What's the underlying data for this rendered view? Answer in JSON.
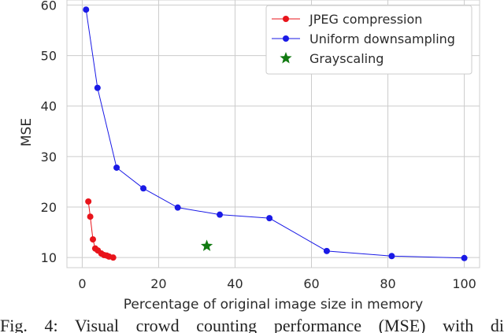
{
  "chart_data": {
    "type": "line",
    "xlabel": "Percentage of original image size in memory",
    "ylabel": "MSE",
    "xlim": [
      -4,
      104
    ],
    "ylim": [
      8,
      61
    ],
    "xticks": [
      0,
      20,
      40,
      60,
      80,
      100
    ],
    "yticks": [
      10,
      20,
      30,
      40,
      50,
      60
    ],
    "grid": true,
    "legend_position": "top-right",
    "series": [
      {
        "name": "JPEG compression",
        "color": "#e8141b",
        "marker": "circle",
        "x": [
          1.6,
          2.1,
          2.8,
          3.4,
          4.1,
          5.0,
          5.7,
          6.4,
          7.0,
          8.1
        ],
        "y": [
          21.1,
          18.1,
          13.6,
          11.8,
          11.4,
          10.8,
          10.5,
          10.4,
          10.2,
          10.0
        ]
      },
      {
        "name": "Uniform downsampling",
        "color": "#1a1ae6",
        "marker": "circle",
        "x": [
          1,
          4,
          9,
          16,
          25,
          36,
          49,
          64,
          81,
          100
        ],
        "y": [
          59.1,
          43.6,
          27.8,
          23.7,
          19.9,
          18.5,
          17.8,
          11.3,
          10.3,
          9.9
        ]
      },
      {
        "name": "Grayscaling",
        "color": "#117a11",
        "marker": "star",
        "x": [
          32.6
        ],
        "y": [
          12.3
        ]
      }
    ]
  },
  "caption": {
    "text": "Fig. 4: Visual crowd counting performance (MSE) with di"
  }
}
